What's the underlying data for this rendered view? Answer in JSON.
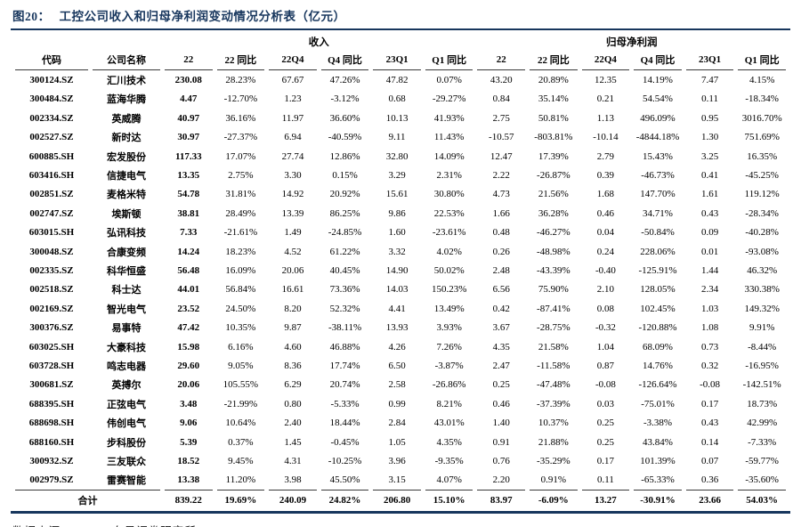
{
  "figure": {
    "label": "图20：",
    "title": "工控公司收入和归母净利润变动情况分析表（亿元）"
  },
  "colors": {
    "accent": "#17365d",
    "header_line": "#3a3a3a"
  },
  "table": {
    "group_headers": {
      "revenue": "收入",
      "net_profit": "归母净利润"
    },
    "columns": [
      "代码",
      "公司名称",
      "22",
      "22 同比",
      "22Q4",
      "Q4 同比",
      "23Q1",
      "Q1 同比",
      "22",
      "22 同比",
      "22Q4",
      "Q4 同比",
      "23Q1",
      "Q1 同比"
    ],
    "column_keys": [
      "code",
      "company",
      "rev-22",
      "rev-22-yoy",
      "rev-22q4",
      "rev-q4-yoy",
      "rev-23q1",
      "rev-q1-yoy",
      "np-22",
      "np-22-yoy",
      "np-22q4",
      "np-q4-yoy",
      "np-23q1",
      "np-q1-yoy"
    ],
    "rows": [
      [
        "300124.SZ",
        "汇川技术",
        "230.08",
        "28.23%",
        "67.67",
        "47.26%",
        "47.82",
        "0.07%",
        "43.20",
        "20.89%",
        "12.35",
        "14.19%",
        "7.47",
        "4.15%"
      ],
      [
        "300484.SZ",
        "蓝海华腾",
        "4.47",
        "-12.70%",
        "1.23",
        "-3.12%",
        "0.68",
        "-29.27%",
        "0.84",
        "35.14%",
        "0.21",
        "54.54%",
        "0.11",
        "-18.34%"
      ],
      [
        "002334.SZ",
        "英威腾",
        "40.97",
        "36.16%",
        "11.97",
        "36.60%",
        "10.13",
        "41.93%",
        "2.75",
        "50.81%",
        "1.13",
        "496.09%",
        "0.95",
        "3016.70%"
      ],
      [
        "002527.SZ",
        "新时达",
        "30.97",
        "-27.37%",
        "6.94",
        "-40.59%",
        "9.11",
        "11.43%",
        "-10.57",
        "-803.81%",
        "-10.14",
        "-4844.18%",
        "1.30",
        "751.69%"
      ],
      [
        "600885.SH",
        "宏发股份",
        "117.33",
        "17.07%",
        "27.74",
        "12.86%",
        "32.80",
        "14.09%",
        "12.47",
        "17.39%",
        "2.79",
        "15.43%",
        "3.25",
        "16.35%"
      ],
      [
        "603416.SH",
        "信捷电气",
        "13.35",
        "2.75%",
        "3.30",
        "0.15%",
        "3.29",
        "2.31%",
        "2.22",
        "-26.87%",
        "0.39",
        "-46.73%",
        "0.41",
        "-45.25%"
      ],
      [
        "002851.SZ",
        "麦格米特",
        "54.78",
        "31.81%",
        "14.92",
        "20.92%",
        "15.61",
        "30.80%",
        "4.73",
        "21.56%",
        "1.68",
        "147.70%",
        "1.61",
        "119.12%"
      ],
      [
        "002747.SZ",
        "埃斯顿",
        "38.81",
        "28.49%",
        "13.39",
        "86.25%",
        "9.86",
        "22.53%",
        "1.66",
        "36.28%",
        "0.46",
        "34.71%",
        "0.43",
        "-28.34%"
      ],
      [
        "603015.SH",
        "弘讯科技",
        "7.33",
        "-21.61%",
        "1.49",
        "-24.85%",
        "1.60",
        "-23.61%",
        "0.48",
        "-46.27%",
        "0.04",
        "-50.84%",
        "0.09",
        "-40.28%"
      ],
      [
        "300048.SZ",
        "合康变频",
        "14.24",
        "18.23%",
        "4.52",
        "61.22%",
        "3.32",
        "4.02%",
        "0.26",
        "-48.98%",
        "0.24",
        "228.06%",
        "0.01",
        "-93.08%"
      ],
      [
        "002335.SZ",
        "科华恒盛",
        "56.48",
        "16.09%",
        "20.06",
        "40.45%",
        "14.90",
        "50.02%",
        "2.48",
        "-43.39%",
        "-0.40",
        "-125.91%",
        "1.44",
        "46.32%"
      ],
      [
        "002518.SZ",
        "科士达",
        "44.01",
        "56.84%",
        "16.61",
        "73.36%",
        "14.03",
        "150.23%",
        "6.56",
        "75.90%",
        "2.10",
        "128.05%",
        "2.34",
        "330.38%"
      ],
      [
        "002169.SZ",
        "智光电气",
        "23.52",
        "24.50%",
        "8.20",
        "52.32%",
        "4.41",
        "13.49%",
        "0.42",
        "-87.41%",
        "0.08",
        "102.45%",
        "1.03",
        "149.32%"
      ],
      [
        "300376.SZ",
        "易事特",
        "47.42",
        "10.35%",
        "9.87",
        "-38.11%",
        "13.93",
        "3.93%",
        "3.67",
        "-28.75%",
        "-0.32",
        "-120.88%",
        "1.08",
        "9.91%"
      ],
      [
        "603025.SH",
        "大豪科技",
        "15.98",
        "6.16%",
        "4.60",
        "46.88%",
        "4.26",
        "7.26%",
        "4.35",
        "21.58%",
        "1.04",
        "68.09%",
        "0.73",
        "-8.44%"
      ],
      [
        "603728.SH",
        "鸣志电器",
        "29.60",
        "9.05%",
        "8.36",
        "17.74%",
        "6.50",
        "-3.87%",
        "2.47",
        "-11.58%",
        "0.87",
        "14.76%",
        "0.32",
        "-16.95%"
      ],
      [
        "300681.SZ",
        "英搏尔",
        "20.06",
        "105.55%",
        "6.29",
        "20.74%",
        "2.58",
        "-26.86%",
        "0.25",
        "-47.48%",
        "-0.08",
        "-126.64%",
        "-0.08",
        "-142.51%"
      ],
      [
        "688395.SH",
        "正弦电气",
        "3.48",
        "-21.99%",
        "0.80",
        "-5.33%",
        "0.99",
        "8.21%",
        "0.46",
        "-37.39%",
        "0.03",
        "-75.01%",
        "0.17",
        "18.73%"
      ],
      [
        "688698.SH",
        "伟创电气",
        "9.06",
        "10.64%",
        "2.40",
        "18.44%",
        "2.84",
        "43.01%",
        "1.40",
        "10.37%",
        "0.25",
        "-3.38%",
        "0.43",
        "42.99%"
      ],
      [
        "688160.SH",
        "步科股份",
        "5.39",
        "0.37%",
        "1.45",
        "-0.45%",
        "1.05",
        "4.35%",
        "0.91",
        "21.88%",
        "0.25",
        "43.84%",
        "0.14",
        "-7.33%"
      ],
      [
        "300932.SZ",
        "三友联众",
        "18.52",
        "9.45%",
        "4.31",
        "-10.25%",
        "3.96",
        "-9.35%",
        "0.76",
        "-35.29%",
        "0.17",
        "101.39%",
        "0.07",
        "-59.77%"
      ],
      [
        "002979.SZ",
        "雷赛智能",
        "13.38",
        "11.20%",
        "3.98",
        "45.50%",
        "3.15",
        "4.07%",
        "2.20",
        "0.91%",
        "0.11",
        "-65.33%",
        "0.36",
        "-35.60%"
      ]
    ],
    "total": {
      "label": "合计",
      "values": [
        "839.22",
        "19.69%",
        "240.09",
        "24.82%",
        "206.80",
        "15.10%",
        "83.97",
        "-6.09%",
        "13.27",
        "-30.91%",
        "23.66",
        "54.03%"
      ]
    }
  },
  "footer": {
    "source": "数据来源：Wind，东吴证券研究所"
  }
}
